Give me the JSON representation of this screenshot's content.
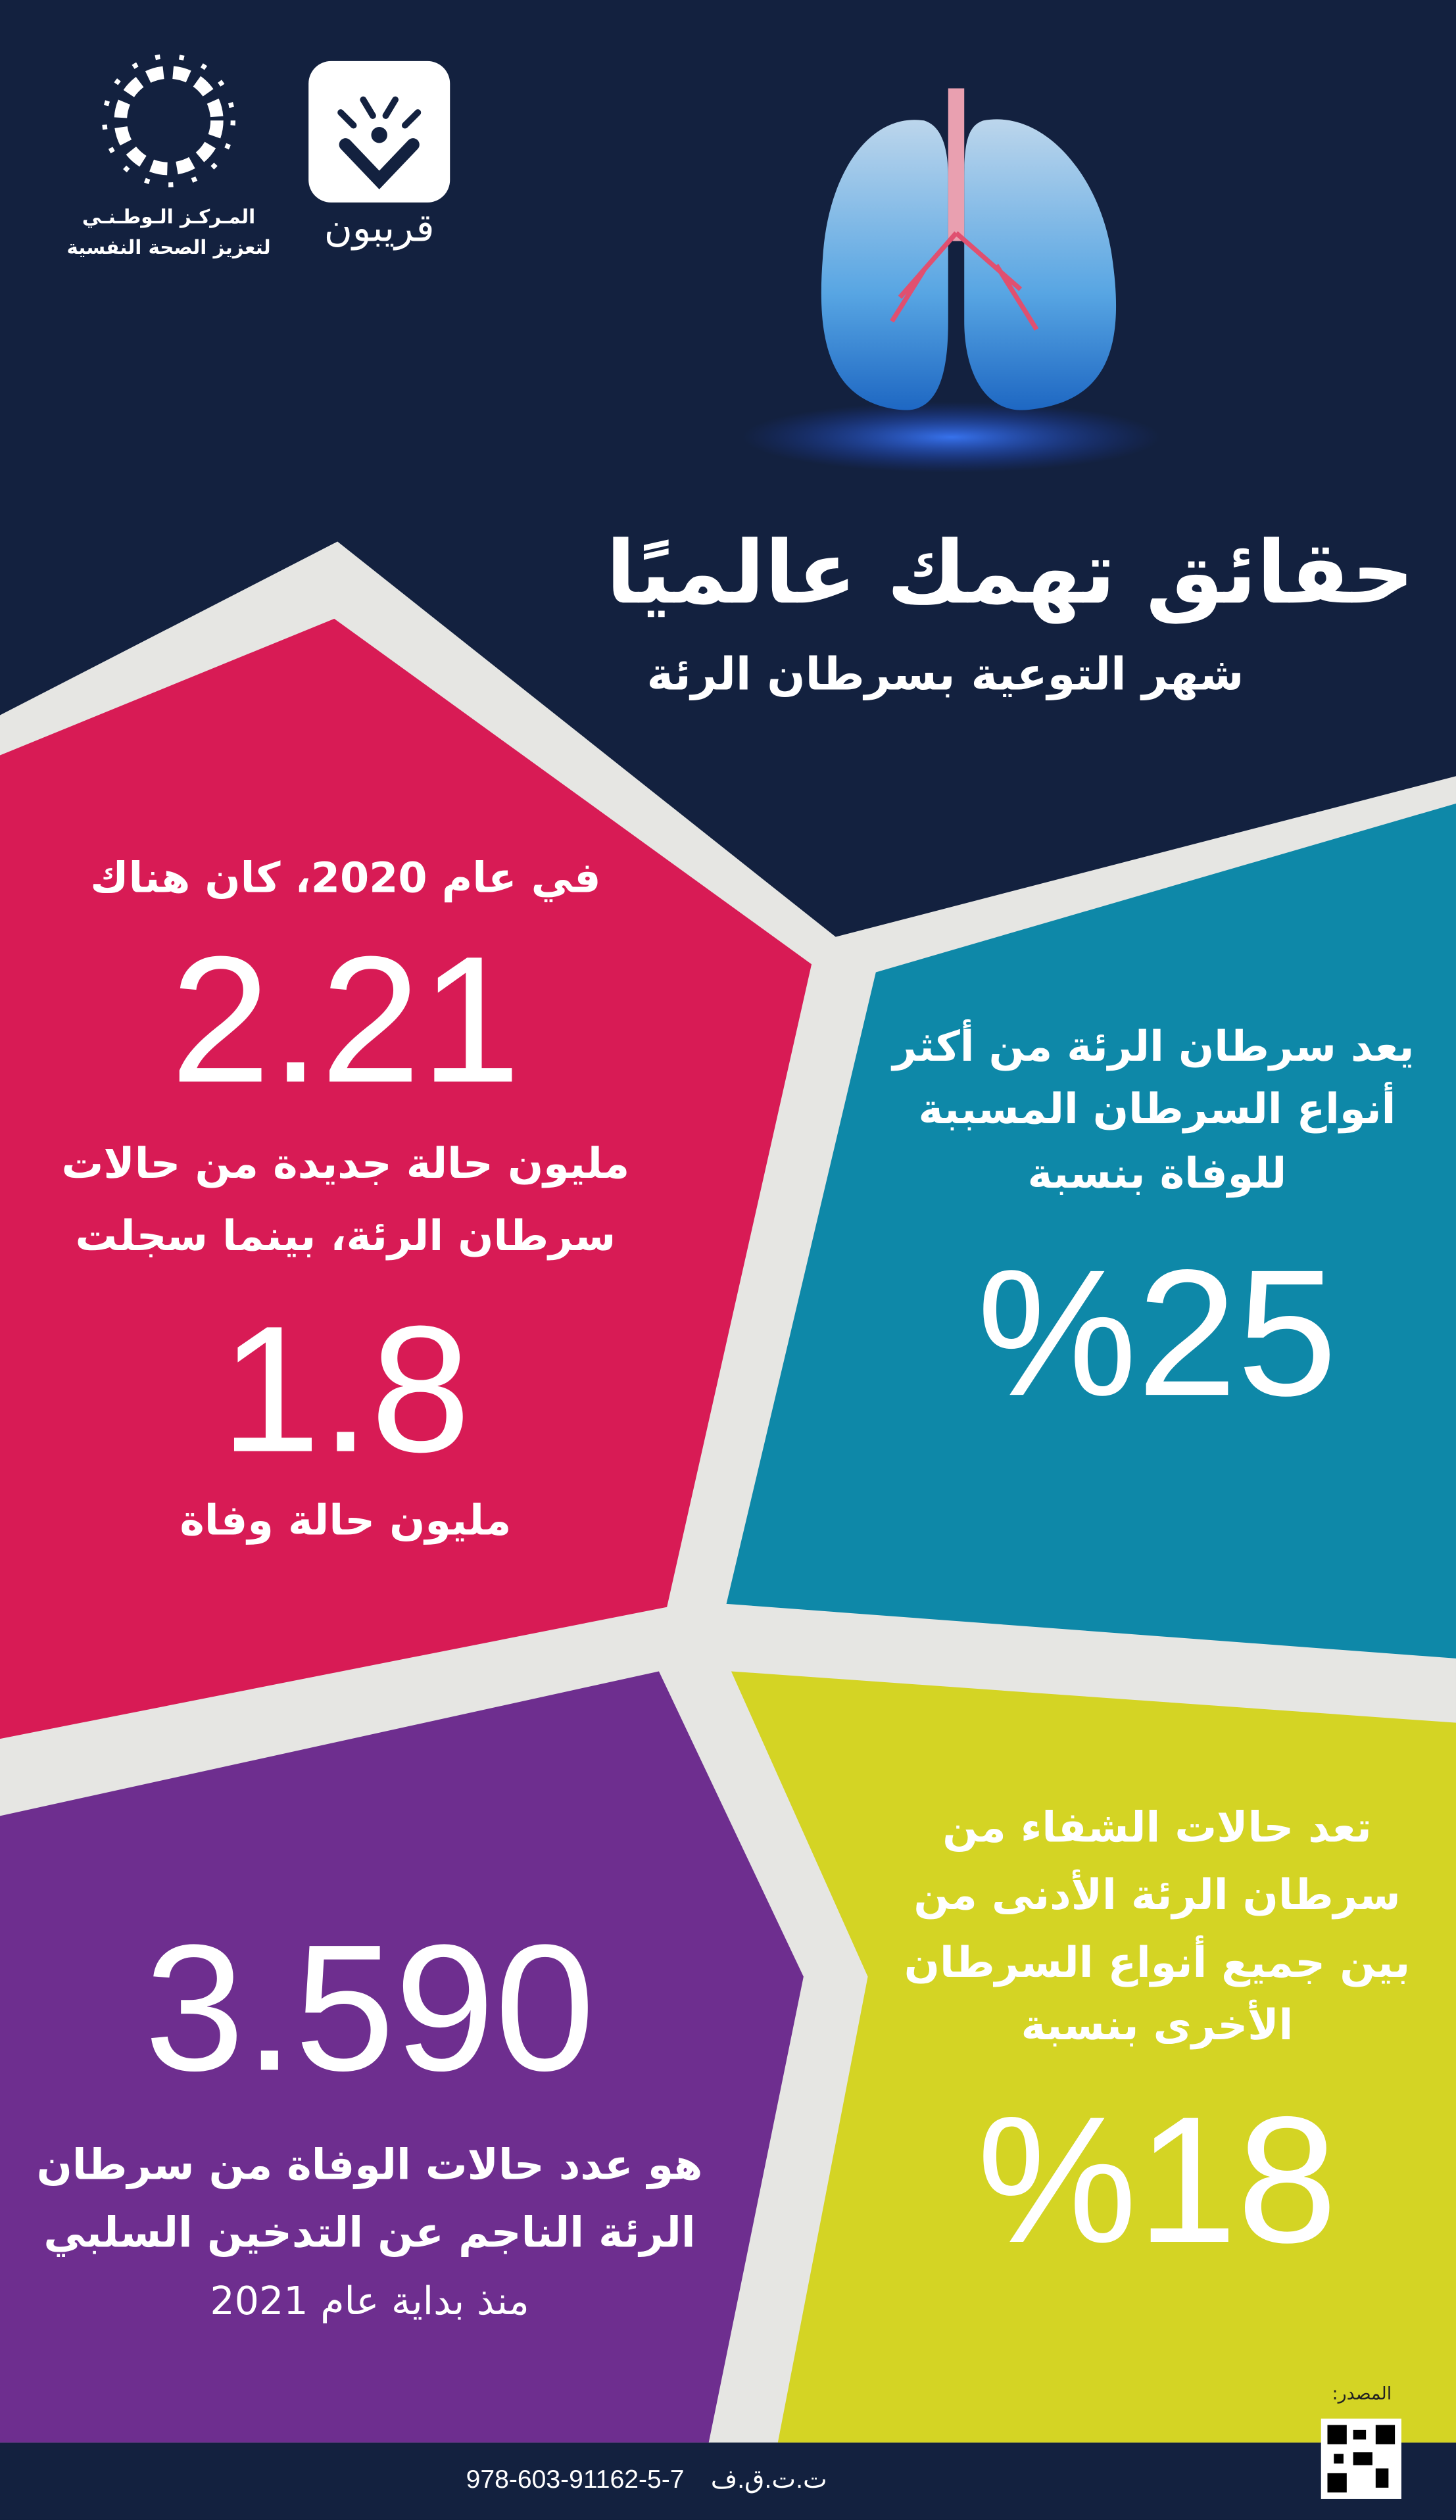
{
  "logos": {
    "ncmh": {
      "line1": "المـركـز الـوطـنـي",
      "line2": "لتعزيز الصحة النفسية"
    },
    "qareebon": {
      "name": "قريبون"
    }
  },
  "header": {
    "title": "حقائق تهمك عالميًا",
    "subtitle": "شهر التوعية بسرطان الرئة"
  },
  "facts": {
    "cases": {
      "intro": "في عام 2020، كان هناك",
      "number1": "2.21",
      "line1": "مليون حالة جديدة من حالات",
      "line2": "سرطان الرئة، بينما سجلت",
      "number2": "1.8",
      "line3": "مليون حالة وفاة"
    },
    "mortality": {
      "line1": "يعد سرطان الرئة من أكثر",
      "line2": "أنواع السرطان المسببة",
      "line3": "للوفاة بنسبة",
      "value": "%25"
    },
    "passive_smoking": {
      "number": "3.590",
      "line1": "هو عدد حالات الوفاة من سرطان",
      "line2": "الرئة الناجم عن التدخين السلبي",
      "line3": "منذ بداية عام 2021"
    },
    "recovery": {
      "line1": "تعد حالات الشفاء من",
      "line2": "سرطان الرئة الأدنى من",
      "line3": "بين جميع أنواع السرطان",
      "line4": "الأخرى بنسبة",
      "value": "%18"
    }
  },
  "footer": {
    "isbn_label": "ت.ت.ق.ف",
    "isbn": "978-603-91162-5-7",
    "source_label": "المصدر:"
  },
  "colors": {
    "navy": "#13213f",
    "red": "#d81b55",
    "teal": "#0e88a8",
    "lime": "#d4d424",
    "purple": "#6e2e8f",
    "grey": "#e6e6e3"
  }
}
